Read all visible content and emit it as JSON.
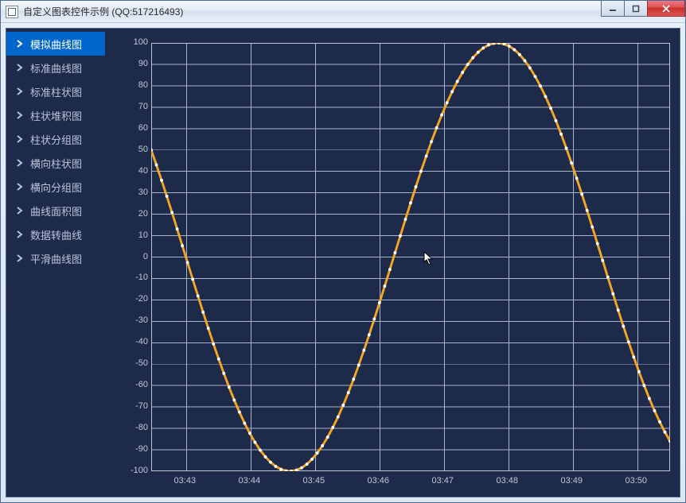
{
  "window": {
    "title": "自定义图表控件示例 (QQ:517216493)"
  },
  "sidebar": {
    "active_index": 0,
    "items": [
      {
        "label": "模拟曲线图"
      },
      {
        "label": "标准曲线图"
      },
      {
        "label": "标准柱状图"
      },
      {
        "label": "柱状堆积图"
      },
      {
        "label": "柱状分组图"
      },
      {
        "label": "横向柱状图"
      },
      {
        "label": "横向分组图"
      },
      {
        "label": "曲线面积图"
      },
      {
        "label": "数据转曲线"
      },
      {
        "label": "平滑曲线图"
      }
    ]
  },
  "chart": {
    "type": "line",
    "background_color": "#1e2a4a",
    "grid_color": "#aab4c8",
    "border_color": "#c0c8d8",
    "line_color": "#f5a623",
    "line_width": 3,
    "marker_color": "#ffffff",
    "marker_radius": 2,
    "ylim": [
      -100,
      100
    ],
    "ytick_step": 10,
    "yticks": [
      100,
      90,
      80,
      70,
      60,
      50,
      40,
      30,
      20,
      10,
      0,
      -10,
      -20,
      -30,
      -40,
      -50,
      -60,
      -70,
      -80,
      -90,
      -100
    ],
    "xticks": [
      "03:43",
      "03:44",
      "03:45",
      "03:46",
      "03:47",
      "03:48",
      "03:49",
      "03:50"
    ],
    "xlabel_fontsize": 11,
    "ylabel_fontsize": 11,
    "label_color": "#c0c8d8",
    "sine": {
      "amplitude": 100,
      "phase_start_y": 50,
      "period_x_units": 6.45,
      "points": 100,
      "x_start": 0,
      "x_end": 8.05
    }
  }
}
